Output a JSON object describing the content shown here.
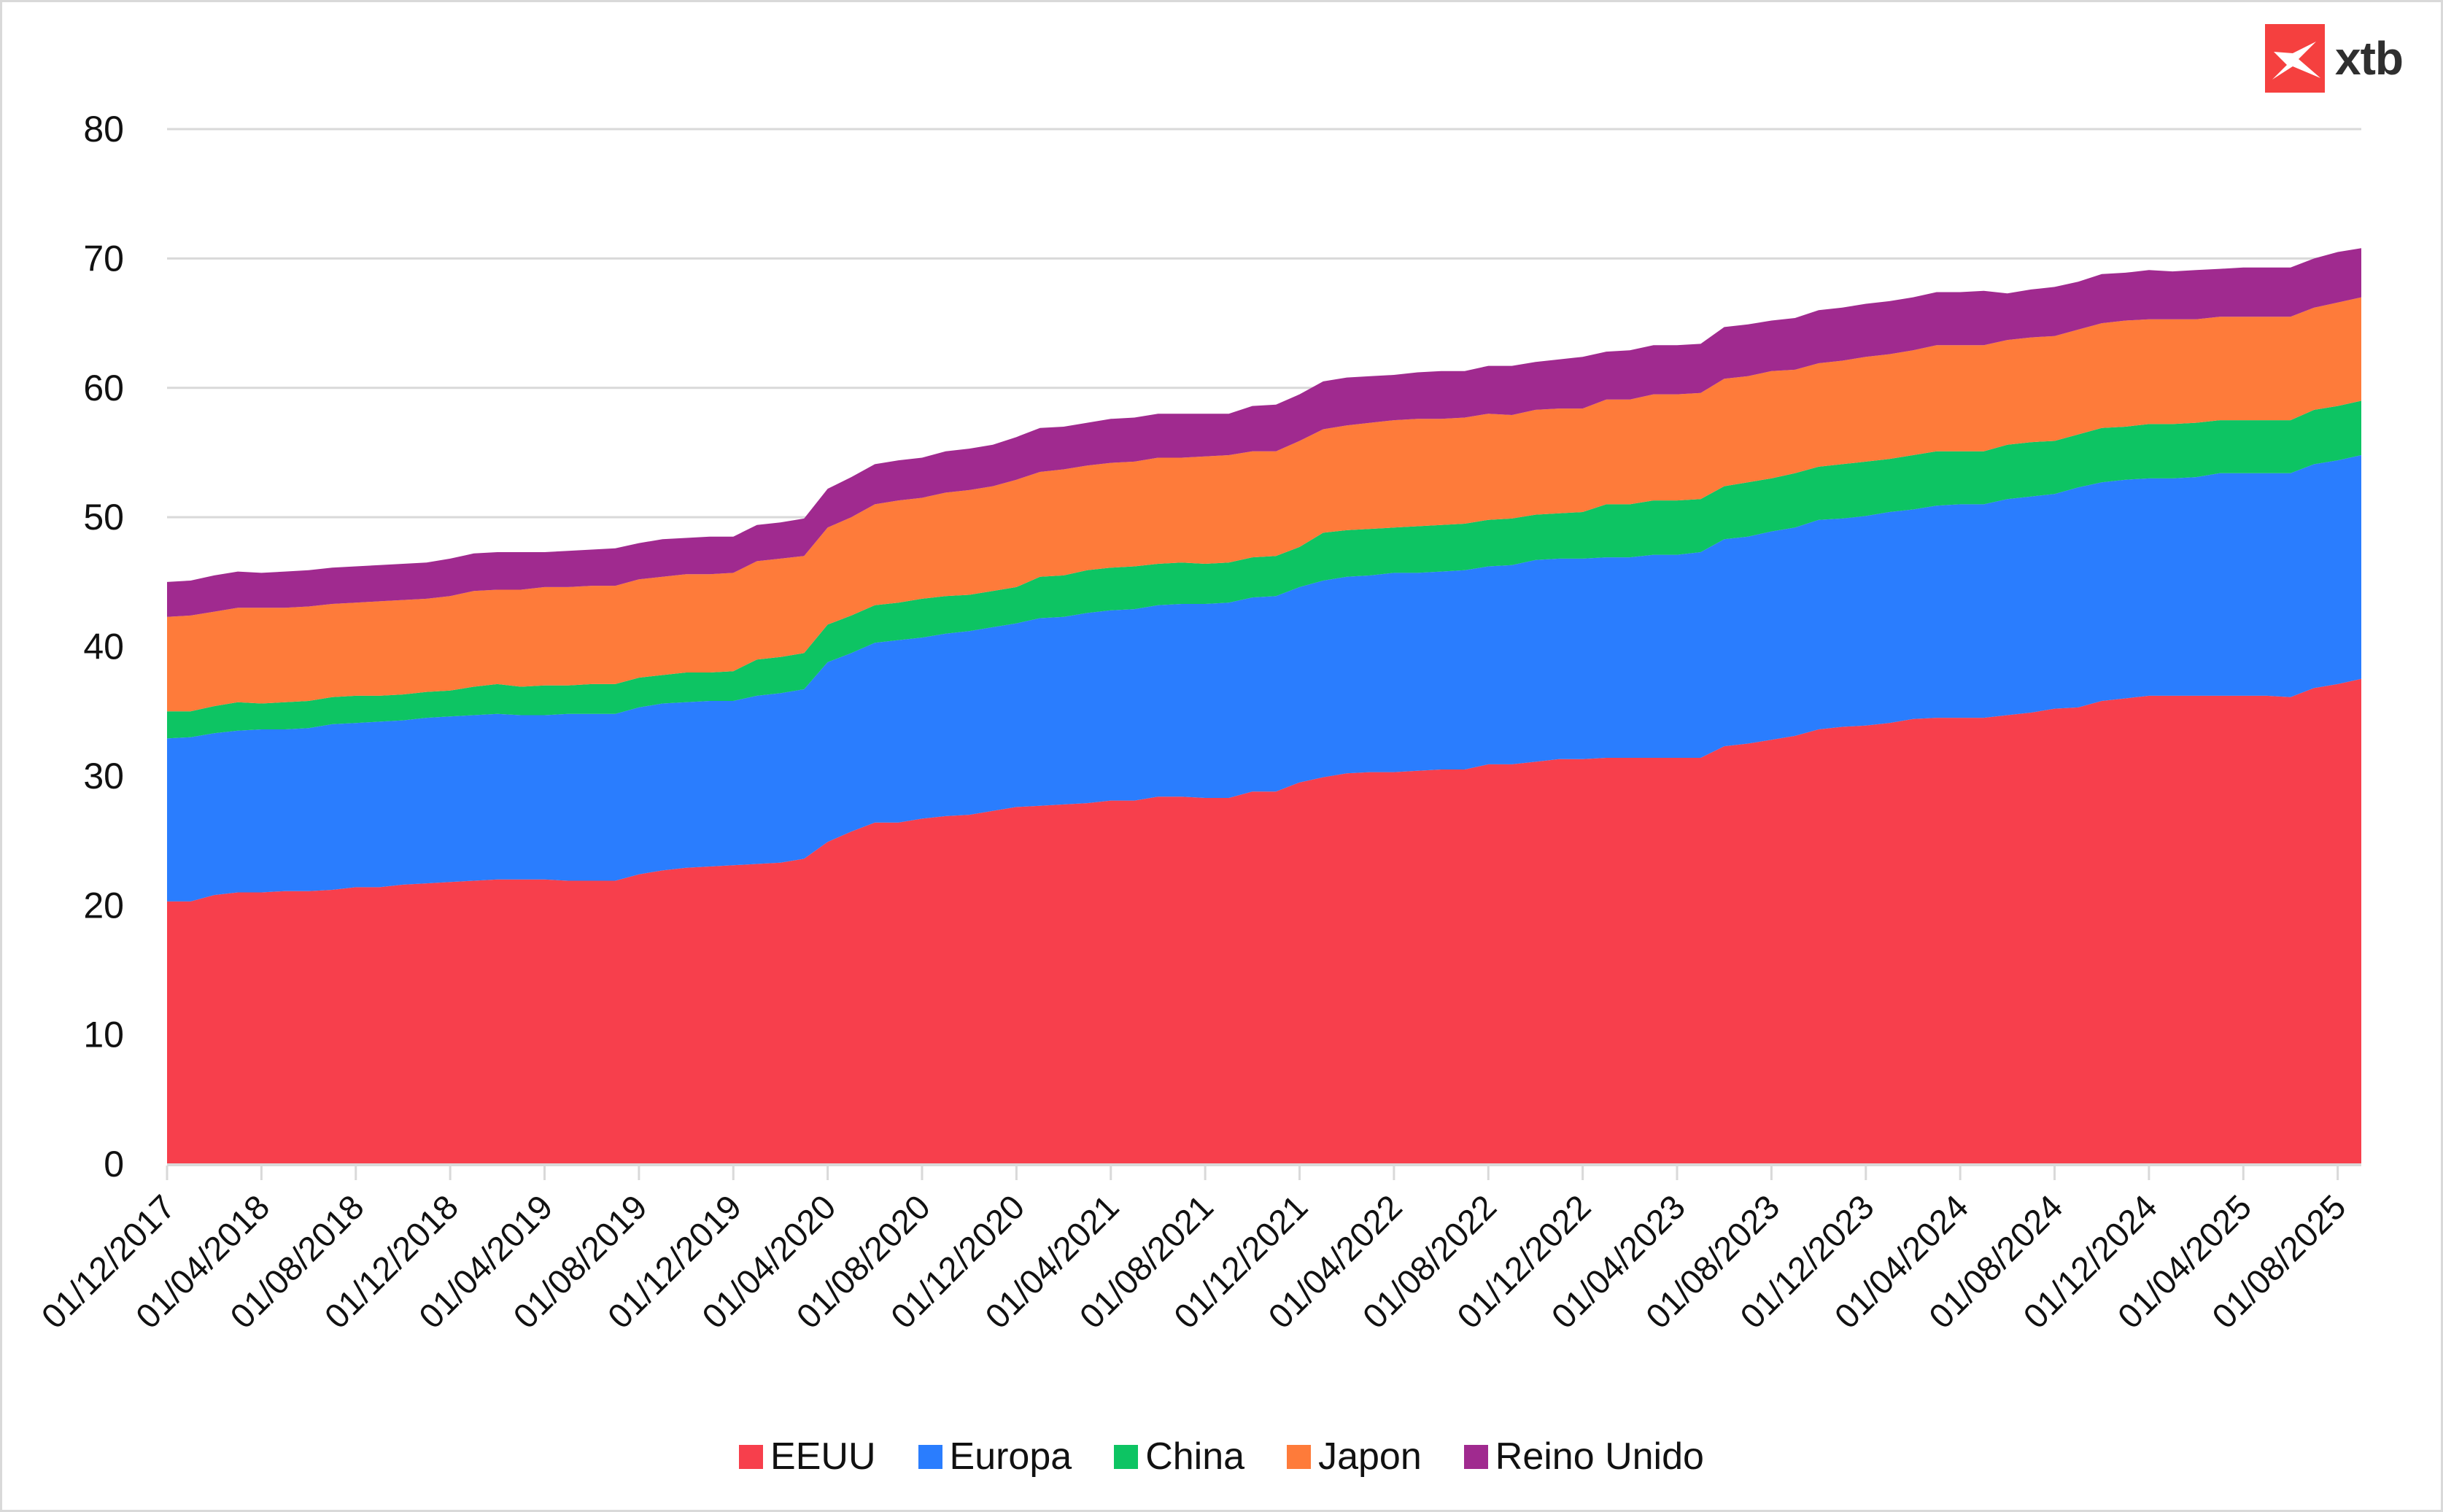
{
  "brand": {
    "name": "xtb",
    "color": "#f5403f"
  },
  "chart_data": {
    "type": "area",
    "stacked": true,
    "title": "",
    "xlabel": "",
    "ylabel": "",
    "ylim": [
      0,
      80
    ],
    "yticks": [
      0,
      10,
      20,
      30,
      40,
      50,
      60,
      70,
      80
    ],
    "grid": true,
    "legend_position": "bottom-center",
    "x": [
      "01/12/2017",
      "01/01/2018",
      "01/02/2018",
      "01/03/2018",
      "01/04/2018",
      "01/05/2018",
      "01/06/2018",
      "01/07/2018",
      "01/08/2018",
      "01/09/2018",
      "01/10/2018",
      "01/11/2018",
      "01/12/2018",
      "01/01/2019",
      "01/02/2019",
      "01/03/2019",
      "01/04/2019",
      "01/05/2019",
      "01/06/2019",
      "01/07/2019",
      "01/08/2019",
      "01/09/2019",
      "01/10/2019",
      "01/11/2019",
      "01/12/2019",
      "01/01/2020",
      "01/02/2020",
      "01/03/2020",
      "01/04/2020",
      "01/05/2020",
      "01/06/2020",
      "01/07/2020",
      "01/08/2020",
      "01/09/2020",
      "01/10/2020",
      "01/11/2020",
      "01/12/2020",
      "01/01/2021",
      "01/02/2021",
      "01/03/2021",
      "01/04/2021",
      "01/05/2021",
      "01/06/2021",
      "01/07/2021",
      "01/08/2021",
      "01/09/2021",
      "01/10/2021",
      "01/11/2021",
      "01/12/2021",
      "01/01/2022",
      "01/02/2022",
      "01/03/2022",
      "01/04/2022",
      "01/05/2022",
      "01/06/2022",
      "01/07/2022",
      "01/08/2022",
      "01/09/2022",
      "01/10/2022",
      "01/11/2022",
      "01/12/2022",
      "01/01/2023",
      "01/02/2023",
      "01/03/2023",
      "01/04/2023",
      "01/05/2023",
      "01/06/2023",
      "01/07/2023",
      "01/08/2023",
      "01/09/2023",
      "01/10/2023",
      "01/11/2023",
      "01/12/2023",
      "01/01/2024",
      "01/02/2024",
      "01/03/2024",
      "01/04/2024",
      "01/05/2024",
      "01/06/2024",
      "01/07/2024",
      "01/08/2024",
      "01/09/2024",
      "01/10/2024",
      "01/11/2024",
      "01/12/2024",
      "01/01/2025",
      "01/02/2025",
      "01/03/2025",
      "01/04/2025",
      "01/05/2025",
      "01/06/2025",
      "01/07/2025",
      "01/08/2025",
      "01/09/2025"
    ],
    "xtick_labels": [
      "01/12/2017",
      "01/04/2018",
      "01/08/2018",
      "01/12/2018",
      "01/04/2019",
      "01/08/2019",
      "01/12/2019",
      "01/04/2020",
      "01/08/2020",
      "01/12/2020",
      "01/04/2021",
      "01/08/2021",
      "01/12/2021",
      "01/04/2022",
      "01/08/2022",
      "01/12/2022",
      "01/04/2023",
      "01/08/2023",
      "01/12/2023",
      "01/04/2024",
      "01/08/2024",
      "01/12/2024",
      "01/04/2025",
      "01/08/2025"
    ],
    "series": [
      {
        "name": "EEUU",
        "color": "#f73f4c",
        "values": [
          20.3,
          20.3,
          20.8,
          21.0,
          21.0,
          21.1,
          21.1,
          21.2,
          21.4,
          21.4,
          21.6,
          21.7,
          21.8,
          21.9,
          22.0,
          22.0,
          22.0,
          21.9,
          21.9,
          21.9,
          22.4,
          22.7,
          22.9,
          23.0,
          23.1,
          23.2,
          23.3,
          23.6,
          24.9,
          25.7,
          26.4,
          26.4,
          26.7,
          26.9,
          27.0,
          27.3,
          27.6,
          27.7,
          27.8,
          27.9,
          28.1,
          28.1,
          28.4,
          28.4,
          28.3,
          28.3,
          28.8,
          28.8,
          29.5,
          29.9,
          30.2,
          30.3,
          30.3,
          30.4,
          30.5,
          30.5,
          30.9,
          30.9,
          31.1,
          31.3,
          31.3,
          31.4,
          31.4,
          31.4,
          31.4,
          31.4,
          32.3,
          32.5,
          32.8,
          33.1,
          33.6,
          33.8,
          33.9,
          34.1,
          34.4,
          34.5,
          34.5,
          34.5,
          34.7,
          34.9,
          35.2,
          35.3,
          35.8,
          36.0,
          36.2,
          36.2,
          36.2,
          36.2,
          36.2,
          36.2,
          36.1,
          36.8,
          37.1,
          37.5
        ]
      },
      {
        "name": "Europa",
        "color": "#2a7dfe",
        "values": [
          12.6,
          12.7,
          12.5,
          12.5,
          12.6,
          12.5,
          12.6,
          12.8,
          12.7,
          12.8,
          12.7,
          12.8,
          12.8,
          12.8,
          12.8,
          12.7,
          12.7,
          12.9,
          12.9,
          12.9,
          12.9,
          12.9,
          12.8,
          12.8,
          12.7,
          13.0,
          13.1,
          13.1,
          13.9,
          13.8,
          13.9,
          14.1,
          14.0,
          14.1,
          14.2,
          14.2,
          14.2,
          14.5,
          14.5,
          14.7,
          14.7,
          14.8,
          14.8,
          14.9,
          15.0,
          15.1,
          15.0,
          15.1,
          15.1,
          15.2,
          15.2,
          15.2,
          15.4,
          15.3,
          15.3,
          15.4,
          15.3,
          15.4,
          15.6,
          15.5,
          15.5,
          15.5,
          15.5,
          15.7,
          15.7,
          15.9,
          16.0,
          16.0,
          16.1,
          16.1,
          16.2,
          16.1,
          16.2,
          16.3,
          16.2,
          16.4,
          16.5,
          16.5,
          16.7,
          16.7,
          16.6,
          17.0,
          16.9,
          16.9,
          16.8,
          16.8,
          16.9,
          17.2,
          17.2,
          17.2,
          17.3,
          17.3,
          17.3,
          17.3
        ]
      },
      {
        "name": "China",
        "color": "#0dc463",
        "values": [
          2.1,
          2.0,
          2.1,
          2.2,
          2.0,
          2.1,
          2.1,
          2.1,
          2.1,
          2.0,
          2.0,
          2.0,
          2.0,
          2.2,
          2.3,
          2.2,
          2.3,
          2.2,
          2.3,
          2.3,
          2.3,
          2.2,
          2.3,
          2.2,
          2.3,
          2.8,
          2.8,
          2.8,
          2.9,
          2.9,
          2.9,
          2.9,
          3.0,
          2.9,
          2.8,
          2.8,
          2.8,
          3.2,
          3.2,
          3.3,
          3.3,
          3.3,
          3.2,
          3.2,
          3.1,
          3.1,
          3.1,
          3.1,
          3.1,
          3.7,
          3.6,
          3.6,
          3.5,
          3.6,
          3.6,
          3.6,
          3.6,
          3.6,
          3.5,
          3.5,
          3.6,
          4.1,
          4.1,
          4.2,
          4.2,
          4.1,
          4.1,
          4.2,
          4.1,
          4.2,
          4.1,
          4.2,
          4.2,
          4.1,
          4.2,
          4.2,
          4.1,
          4.1,
          4.2,
          4.2,
          4.1,
          4.1,
          4.2,
          4.1,
          4.2,
          4.2,
          4.2,
          4.1,
          4.1,
          4.1,
          4.1,
          4.2,
          4.2,
          4.2
        ]
      },
      {
        "name": "Japon",
        "color": "#fe7b3a",
        "values": [
          7.3,
          7.4,
          7.3,
          7.3,
          7.4,
          7.3,
          7.3,
          7.2,
          7.2,
          7.3,
          7.3,
          7.2,
          7.3,
          7.4,
          7.3,
          7.5,
          7.6,
          7.6,
          7.6,
          7.6,
          7.6,
          7.6,
          7.6,
          7.6,
          7.6,
          7.6,
          7.6,
          7.5,
          7.5,
          7.6,
          7.8,
          7.9,
          7.8,
          8.0,
          8.1,
          8.1,
          8.3,
          8.1,
          8.2,
          8.1,
          8.1,
          8.1,
          8.2,
          8.1,
          8.3,
          8.3,
          8.2,
          8.1,
          8.2,
          8.0,
          8.1,
          8.2,
          8.3,
          8.3,
          8.2,
          8.2,
          8.2,
          8.0,
          8.1,
          8.1,
          8.0,
          8.1,
          8.1,
          8.2,
          8.2,
          8.2,
          8.3,
          8.2,
          8.3,
          8.0,
          8.0,
          8.0,
          8.1,
          8.1,
          8.1,
          8.2,
          8.2,
          8.2,
          8.1,
          8.1,
          8.1,
          8.1,
          8.1,
          8.2,
          8.1,
          8.1,
          8.0,
          8.0,
          8.0,
          8.0,
          8.0,
          7.9,
          8.0,
          8.0
        ]
      },
      {
        "name": "Reino Unido",
        "color": "#a02a8f",
        "values": [
          2.7,
          2.7,
          2.8,
          2.8,
          2.7,
          2.8,
          2.8,
          2.8,
          2.8,
          2.8,
          2.8,
          2.8,
          2.9,
          2.9,
          2.9,
          2.9,
          2.7,
          2.8,
          2.8,
          2.9,
          2.8,
          2.9,
          2.8,
          2.9,
          2.8,
          2.8,
          2.8,
          2.9,
          3.0,
          3.1,
          3.1,
          3.1,
          3.1,
          3.2,
          3.2,
          3.2,
          3.3,
          3.4,
          3.3,
          3.3,
          3.4,
          3.4,
          3.4,
          3.4,
          3.3,
          3.2,
          3.5,
          3.6,
          3.6,
          3.7,
          3.7,
          3.6,
          3.5,
          3.6,
          3.7,
          3.6,
          3.7,
          3.8,
          3.7,
          3.8,
          4.0,
          3.7,
          3.8,
          3.8,
          3.8,
          3.8,
          4.0,
          4.0,
          3.9,
          4.0,
          4.1,
          4.1,
          4.1,
          4.1,
          4.1,
          4.1,
          4.1,
          4.2,
          3.6,
          3.7,
          3.8,
          3.7,
          3.8,
          3.7,
          3.8,
          3.7,
          3.8,
          3.7,
          3.8,
          3.8,
          3.8,
          3.8,
          3.9,
          3.8
        ]
      }
    ]
  }
}
